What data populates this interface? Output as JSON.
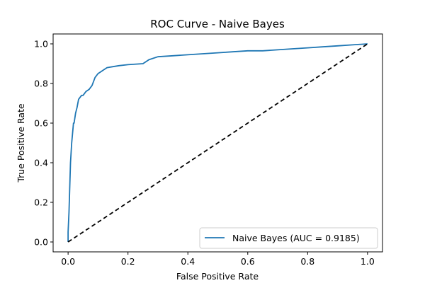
{
  "chart_data": {
    "type": "line",
    "title": "ROC Curve - Naive Bayes",
    "xlabel": "False Positive Rate",
    "ylabel": "True Positive Rate",
    "xlim": [
      -0.05,
      1.05
    ],
    "ylim": [
      -0.05,
      1.05
    ],
    "xticks": [
      0.0,
      0.2,
      0.4,
      0.6,
      0.8,
      1.0
    ],
    "xtick_labels": [
      "0.0",
      "0.2",
      "0.4",
      "0.6",
      "0.8",
      "1.0"
    ],
    "yticks": [
      0.0,
      0.2,
      0.4,
      0.6,
      0.8,
      1.0
    ],
    "ytick_labels": [
      "0.0",
      "0.2",
      "0.4",
      "0.6",
      "0.8",
      "1.0"
    ],
    "grid": false,
    "legend_position": "lower-right",
    "series": [
      {
        "name": "Naive Bayes (AUC = 0.9185)",
        "color": "#1f77b4",
        "style": "solid",
        "x": [
          0.0,
          0.0,
          0.003,
          0.005,
          0.006,
          0.008,
          0.01,
          0.012,
          0.015,
          0.018,
          0.02,
          0.025,
          0.03,
          0.035,
          0.04,
          0.045,
          0.05,
          0.06,
          0.07,
          0.08,
          0.085,
          0.09,
          0.1,
          0.11,
          0.12,
          0.13,
          0.15,
          0.17,
          0.2,
          0.25,
          0.27,
          0.3,
          0.35,
          0.4,
          0.45,
          0.5,
          0.55,
          0.6,
          0.65,
          0.7,
          0.75,
          0.8,
          0.85,
          0.9,
          0.95,
          1.0
        ],
        "y": [
          0.0,
          0.05,
          0.15,
          0.25,
          0.3,
          0.4,
          0.45,
          0.5,
          0.55,
          0.6,
          0.6,
          0.65,
          0.68,
          0.72,
          0.73,
          0.74,
          0.74,
          0.76,
          0.77,
          0.79,
          0.81,
          0.83,
          0.85,
          0.86,
          0.87,
          0.88,
          0.885,
          0.89,
          0.895,
          0.9,
          0.92,
          0.935,
          0.94,
          0.945,
          0.95,
          0.955,
          0.96,
          0.965,
          0.965,
          0.97,
          0.975,
          0.98,
          0.985,
          0.99,
          0.995,
          1.0
        ]
      },
      {
        "name": "",
        "color": "#000000",
        "style": "dashed",
        "x": [
          0.0,
          1.0
        ],
        "y": [
          0.0,
          1.0
        ]
      }
    ]
  }
}
